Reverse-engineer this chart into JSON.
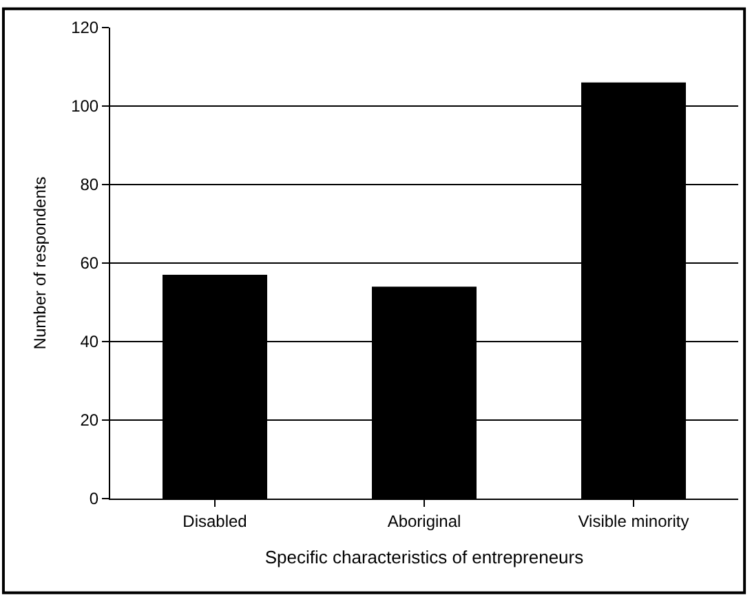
{
  "chart_data": {
    "type": "bar",
    "xlabel": "Specific characteristics of entrepreneurs",
    "ylabel": "Number of respondents",
    "categories": [
      "Disabled",
      "Aboriginal",
      "Visible minority"
    ],
    "values": [
      57,
      54,
      106
    ],
    "color": "#000000",
    "ylim": [
      0,
      120
    ],
    "yticks": [
      0,
      20,
      40,
      60,
      80,
      100,
      120
    ],
    "grid": "y"
  }
}
